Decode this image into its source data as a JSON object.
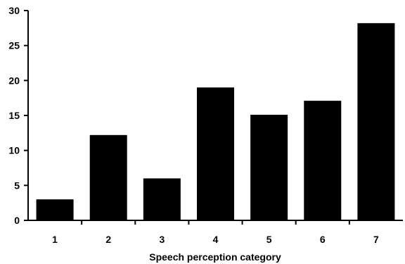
{
  "chart_data": {
    "type": "bar",
    "categories": [
      "1",
      "2",
      "3",
      "4",
      "5",
      "6",
      "7"
    ],
    "values": [
      3,
      12.2,
      6,
      19,
      15.1,
      17.1,
      28.2
    ],
    "title": "",
    "xlabel": "Speech perception category",
    "ylabel": "",
    "ylim": [
      0,
      30
    ],
    "yticks": [
      0,
      5,
      10,
      15,
      20,
      25,
      30
    ],
    "grid": false,
    "bar_color": "#000000"
  }
}
